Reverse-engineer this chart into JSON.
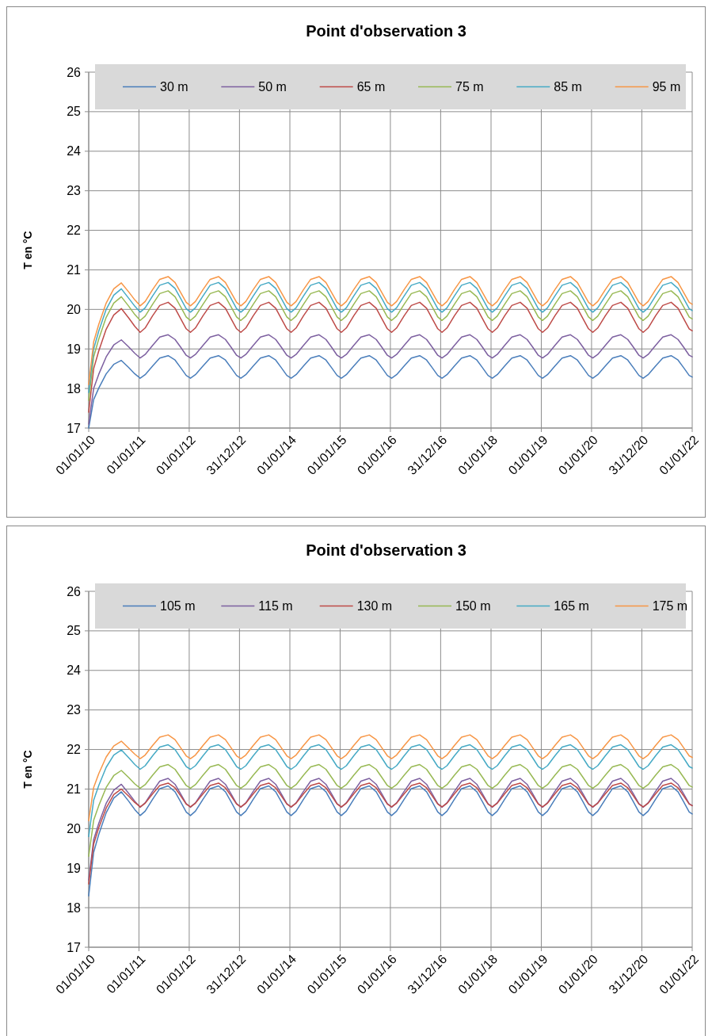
{
  "chart_data": [
    {
      "type": "line",
      "title": "Point d'observation 3",
      "ylabel": "T en °C",
      "legend": "top",
      "grid": true,
      "xlim": [
        "2010-01-01",
        "2022-01-01"
      ],
      "ylim": [
        17,
        26
      ],
      "yticks": [
        17,
        18,
        19,
        20,
        21,
        22,
        23,
        24,
        25,
        26
      ],
      "xticks": [
        {
          "value": "2010-01-01",
          "label": "01/01/10"
        },
        {
          "value": "2011-01-01",
          "label": "01/01/11"
        },
        {
          "value": "2012-01-01",
          "label": "01/01/12"
        },
        {
          "value": "2012-12-31",
          "label": "31/12/12"
        },
        {
          "value": "2014-01-01",
          "label": "01/01/14"
        },
        {
          "value": "2015-01-01",
          "label": "01/01/15"
        },
        {
          "value": "2016-01-01",
          "label": "01/01/16"
        },
        {
          "value": "2016-12-31",
          "label": "31/12/16"
        },
        {
          "value": "2018-01-01",
          "label": "01/01/18"
        },
        {
          "value": "2019-01-01",
          "label": "01/01/19"
        },
        {
          "value": "2020-01-01",
          "label": "01/01/20"
        },
        {
          "value": "2020-12-31",
          "label": "31/12/20"
        },
        {
          "value": "2022-01-01",
          "label": "01/01/22"
        }
      ],
      "x": [
        "2010-01-01",
        "2010-02-06",
        "2010-03-15",
        "2010-05-08",
        "2010-07-02",
        "2010-08-26",
        "2010-10-19",
        "2010-12-02",
        "2011-01-10",
        "2011-02-15",
        "2011-04-10",
        "2011-06-01",
        "2011-08-01",
        "2011-09-20",
        "2011-11-01",
        "2011-12-10",
        "2012-01-10",
        "2012-02-15",
        "2012-04-10",
        "2012-06-01",
        "2012-08-01",
        "2012-09-20",
        "2012-11-01",
        "2012-12-10",
        "2013-01-10",
        "2013-02-15",
        "2013-04-10",
        "2013-06-01",
        "2013-08-01",
        "2013-09-20",
        "2013-11-01",
        "2013-12-10",
        "2014-01-10",
        "2014-02-15",
        "2014-04-10",
        "2014-06-01",
        "2014-08-01",
        "2014-09-20",
        "2014-11-01",
        "2014-12-10",
        "2015-01-10",
        "2015-02-15",
        "2015-04-10",
        "2015-06-01",
        "2015-08-01",
        "2015-09-20",
        "2015-11-01",
        "2015-12-10",
        "2016-01-10",
        "2016-02-15",
        "2016-04-10",
        "2016-06-01",
        "2016-08-01",
        "2016-09-20",
        "2016-11-01",
        "2016-12-10",
        "2017-01-10",
        "2017-02-15",
        "2017-04-10",
        "2017-06-01",
        "2017-08-01",
        "2017-09-20",
        "2017-11-01",
        "2017-12-10",
        "2018-01-10",
        "2018-02-15",
        "2018-04-10",
        "2018-06-01",
        "2018-08-01",
        "2018-09-20",
        "2018-11-01",
        "2018-12-10",
        "2019-01-10",
        "2019-02-15",
        "2019-04-10",
        "2019-06-01",
        "2019-08-01",
        "2019-09-20",
        "2019-11-01",
        "2019-12-10",
        "2020-01-10",
        "2020-02-15",
        "2020-04-10",
        "2020-06-01",
        "2020-08-01",
        "2020-09-20",
        "2020-11-01",
        "2020-12-10",
        "2021-01-10",
        "2021-02-15",
        "2021-04-10",
        "2021-06-01",
        "2021-08-01",
        "2021-09-20",
        "2021-11-01",
        "2021-12-10",
        "2022-01-01"
      ],
      "series": [
        {
          "name": "30 m",
          "color": "#4a7ebb",
          "values": [
            17.0,
            17.72,
            18.01,
            18.37,
            18.61,
            18.71,
            18.53,
            18.37,
            18.26,
            18.35,
            18.57,
            18.77,
            18.83,
            18.72,
            18.52,
            18.33,
            18.26,
            18.35,
            18.57,
            18.77,
            18.83,
            18.72,
            18.52,
            18.33,
            18.26,
            18.35,
            18.57,
            18.77,
            18.83,
            18.72,
            18.52,
            18.33,
            18.26,
            18.35,
            18.57,
            18.77,
            18.83,
            18.72,
            18.52,
            18.33,
            18.26,
            18.35,
            18.57,
            18.77,
            18.83,
            18.72,
            18.52,
            18.33,
            18.26,
            18.35,
            18.57,
            18.77,
            18.83,
            18.72,
            18.52,
            18.33,
            18.26,
            18.35,
            18.57,
            18.77,
            18.83,
            18.72,
            18.52,
            18.33,
            18.26,
            18.35,
            18.57,
            18.77,
            18.83,
            18.72,
            18.52,
            18.33,
            18.26,
            18.35,
            18.57,
            18.77,
            18.83,
            18.72,
            18.52,
            18.33,
            18.26,
            18.35,
            18.57,
            18.77,
            18.83,
            18.72,
            18.52,
            18.33,
            18.26,
            18.35,
            18.57,
            18.77,
            18.83,
            18.72,
            18.52,
            18.33,
            18.29
          ]
        },
        {
          "name": "50 m",
          "color": "#7d60a0",
          "values": [
            17.1,
            18.0,
            18.36,
            18.8,
            19.1,
            19.23,
            19.05,
            18.89,
            18.77,
            18.86,
            19.09,
            19.3,
            19.36,
            19.24,
            19.04,
            18.84,
            18.77,
            18.86,
            19.09,
            19.3,
            19.36,
            19.24,
            19.04,
            18.84,
            18.77,
            18.86,
            19.09,
            19.3,
            19.36,
            19.24,
            19.04,
            18.84,
            18.77,
            18.86,
            19.09,
            19.3,
            19.36,
            19.24,
            19.04,
            18.84,
            18.77,
            18.86,
            19.09,
            19.3,
            19.36,
            19.24,
            19.04,
            18.84,
            18.77,
            18.86,
            19.09,
            19.3,
            19.36,
            19.24,
            19.04,
            18.84,
            18.77,
            18.86,
            19.09,
            19.3,
            19.36,
            19.24,
            19.04,
            18.84,
            18.77,
            18.86,
            19.09,
            19.3,
            19.36,
            19.24,
            19.04,
            18.84,
            18.77,
            18.86,
            19.09,
            19.3,
            19.36,
            19.24,
            19.04,
            18.84,
            18.77,
            18.86,
            19.09,
            19.3,
            19.36,
            19.24,
            19.04,
            18.84,
            18.77,
            18.86,
            19.09,
            19.3,
            19.36,
            19.24,
            19.04,
            18.84,
            18.8
          ]
        },
        {
          "name": "65 m",
          "color": "#be4b48",
          "values": [
            17.4,
            18.5,
            18.95,
            19.5,
            19.86,
            20.02,
            19.78,
            19.57,
            19.42,
            19.53,
            19.84,
            20.1,
            20.18,
            20.03,
            19.76,
            19.51,
            19.42,
            19.53,
            19.84,
            20.1,
            20.18,
            20.03,
            19.76,
            19.51,
            19.42,
            19.53,
            19.84,
            20.1,
            20.18,
            20.03,
            19.76,
            19.51,
            19.42,
            19.53,
            19.84,
            20.1,
            20.18,
            20.03,
            19.76,
            19.51,
            19.42,
            19.53,
            19.84,
            20.1,
            20.18,
            20.03,
            19.76,
            19.51,
            19.42,
            19.53,
            19.84,
            20.1,
            20.18,
            20.03,
            19.76,
            19.51,
            19.42,
            19.53,
            19.84,
            20.1,
            20.18,
            20.03,
            19.76,
            19.51,
            19.42,
            19.53,
            19.84,
            20.1,
            20.18,
            20.03,
            19.76,
            19.51,
            19.42,
            19.53,
            19.84,
            20.1,
            20.18,
            20.03,
            19.76,
            19.51,
            19.42,
            19.53,
            19.84,
            20.1,
            20.18,
            20.03,
            19.76,
            19.51,
            19.42,
            19.53,
            19.84,
            20.1,
            20.18,
            20.03,
            19.76,
            19.51,
            19.46
          ]
        },
        {
          "name": "75 m",
          "color": "#98b954",
          "values": [
            17.7,
            18.8,
            19.25,
            19.8,
            20.16,
            20.32,
            20.08,
            19.87,
            19.72,
            19.83,
            20.13,
            20.4,
            20.47,
            20.32,
            20.06,
            19.81,
            19.72,
            19.83,
            20.13,
            20.4,
            20.47,
            20.32,
            20.06,
            19.81,
            19.72,
            19.83,
            20.13,
            20.4,
            20.47,
            20.32,
            20.06,
            19.81,
            19.72,
            19.83,
            20.13,
            20.4,
            20.47,
            20.32,
            20.06,
            19.81,
            19.72,
            19.83,
            20.13,
            20.4,
            20.47,
            20.32,
            20.06,
            19.81,
            19.72,
            19.83,
            20.13,
            20.4,
            20.47,
            20.32,
            20.06,
            19.81,
            19.72,
            19.83,
            20.13,
            20.4,
            20.47,
            20.32,
            20.06,
            19.81,
            19.72,
            19.83,
            20.13,
            20.4,
            20.47,
            20.32,
            20.06,
            19.81,
            19.72,
            19.83,
            20.13,
            20.4,
            20.47,
            20.32,
            20.06,
            19.81,
            19.72,
            19.83,
            20.13,
            20.4,
            20.47,
            20.32,
            20.06,
            19.81,
            19.72,
            19.83,
            20.13,
            20.4,
            20.47,
            20.32,
            20.06,
            19.81,
            19.76
          ]
        },
        {
          "name": "85 m",
          "color": "#46aac5",
          "values": [
            17.9,
            19.0,
            19.45,
            20.0,
            20.36,
            20.52,
            20.28,
            20.08,
            19.93,
            20.04,
            20.34,
            20.61,
            20.68,
            20.53,
            20.27,
            20.02,
            19.93,
            20.04,
            20.34,
            20.61,
            20.68,
            20.53,
            20.27,
            20.02,
            19.93,
            20.04,
            20.34,
            20.61,
            20.68,
            20.53,
            20.27,
            20.02,
            19.93,
            20.04,
            20.34,
            20.61,
            20.68,
            20.53,
            20.27,
            20.02,
            19.93,
            20.04,
            20.34,
            20.61,
            20.68,
            20.53,
            20.27,
            20.02,
            19.93,
            20.04,
            20.34,
            20.61,
            20.68,
            20.53,
            20.27,
            20.02,
            19.93,
            20.04,
            20.34,
            20.61,
            20.68,
            20.53,
            20.27,
            20.02,
            19.93,
            20.04,
            20.34,
            20.61,
            20.68,
            20.53,
            20.27,
            20.02,
            19.93,
            20.04,
            20.34,
            20.61,
            20.68,
            20.53,
            20.27,
            20.02,
            19.93,
            20.04,
            20.34,
            20.61,
            20.68,
            20.53,
            20.27,
            20.02,
            19.93,
            20.04,
            20.34,
            20.61,
            20.68,
            20.53,
            20.27,
            20.02,
            19.97
          ]
        },
        {
          "name": "95 m",
          "color": "#f79646",
          "values": [
            18.1,
            19.18,
            19.62,
            20.16,
            20.52,
            20.67,
            20.44,
            20.24,
            20.09,
            20.2,
            20.5,
            20.76,
            20.83,
            20.68,
            20.42,
            20.18,
            20.09,
            20.2,
            20.5,
            20.76,
            20.83,
            20.68,
            20.42,
            20.18,
            20.09,
            20.2,
            20.5,
            20.76,
            20.83,
            20.68,
            20.42,
            20.18,
            20.09,
            20.2,
            20.5,
            20.76,
            20.83,
            20.68,
            20.42,
            20.18,
            20.09,
            20.2,
            20.5,
            20.76,
            20.83,
            20.68,
            20.42,
            20.18,
            20.09,
            20.2,
            20.5,
            20.76,
            20.83,
            20.68,
            20.42,
            20.18,
            20.09,
            20.2,
            20.5,
            20.76,
            20.83,
            20.68,
            20.42,
            20.18,
            20.09,
            20.2,
            20.5,
            20.76,
            20.83,
            20.68,
            20.42,
            20.18,
            20.09,
            20.2,
            20.5,
            20.76,
            20.83,
            20.68,
            20.42,
            20.18,
            20.09,
            20.2,
            20.5,
            20.76,
            20.83,
            20.68,
            20.42,
            20.18,
            20.09,
            20.2,
            20.5,
            20.76,
            20.83,
            20.68,
            20.42,
            20.18,
            20.13
          ]
        }
      ]
    },
    {
      "type": "line",
      "title": "Point d'observation 3",
      "ylabel": "T en °C",
      "legend": "top",
      "grid": true,
      "xlim": [
        "2010-01-01",
        "2022-01-01"
      ],
      "ylim": [
        17,
        26
      ],
      "yticks": [
        17,
        18,
        19,
        20,
        21,
        22,
        23,
        24,
        25,
        26
      ],
      "xticks": [
        {
          "value": "2010-01-01",
          "label": "01/01/10"
        },
        {
          "value": "2011-01-01",
          "label": "01/01/11"
        },
        {
          "value": "2012-01-01",
          "label": "01/01/12"
        },
        {
          "value": "2012-12-31",
          "label": "31/12/12"
        },
        {
          "value": "2014-01-01",
          "label": "01/01/14"
        },
        {
          "value": "2015-01-01",
          "label": "01/01/15"
        },
        {
          "value": "2016-01-01",
          "label": "01/01/16"
        },
        {
          "value": "2016-12-31",
          "label": "31/12/16"
        },
        {
          "value": "2018-01-01",
          "label": "01/01/18"
        },
        {
          "value": "2019-01-01",
          "label": "01/01/19"
        },
        {
          "value": "2020-01-01",
          "label": "01/01/20"
        },
        {
          "value": "2020-12-31",
          "label": "31/12/20"
        },
        {
          "value": "2022-01-01",
          "label": "01/01/22"
        }
      ],
      "x": [
        "2010-01-01",
        "2010-02-06",
        "2010-03-15",
        "2010-05-08",
        "2010-07-02",
        "2010-08-26",
        "2010-10-19",
        "2010-12-02",
        "2011-01-10",
        "2011-02-15",
        "2011-04-10",
        "2011-06-01",
        "2011-08-01",
        "2011-09-20",
        "2011-11-01",
        "2011-12-10",
        "2012-01-10",
        "2012-02-15",
        "2012-04-10",
        "2012-06-01",
        "2012-08-01",
        "2012-09-20",
        "2012-11-01",
        "2012-12-10",
        "2013-01-10",
        "2013-02-15",
        "2013-04-10",
        "2013-06-01",
        "2013-08-01",
        "2013-09-20",
        "2013-11-01",
        "2013-12-10",
        "2014-01-10",
        "2014-02-15",
        "2014-04-10",
        "2014-06-01",
        "2014-08-01",
        "2014-09-20",
        "2014-11-01",
        "2014-12-10",
        "2015-01-10",
        "2015-02-15",
        "2015-04-10",
        "2015-06-01",
        "2015-08-01",
        "2015-09-20",
        "2015-11-01",
        "2015-12-10",
        "2016-01-10",
        "2016-02-15",
        "2016-04-10",
        "2016-06-01",
        "2016-08-01",
        "2016-09-20",
        "2016-11-01",
        "2016-12-10",
        "2017-01-10",
        "2017-02-15",
        "2017-04-10",
        "2017-06-01",
        "2017-08-01",
        "2017-09-20",
        "2017-11-01",
        "2017-12-10",
        "2018-01-10",
        "2018-02-15",
        "2018-04-10",
        "2018-06-01",
        "2018-08-01",
        "2018-09-20",
        "2018-11-01",
        "2018-12-10",
        "2019-01-10",
        "2019-02-15",
        "2019-04-10",
        "2019-06-01",
        "2019-08-01",
        "2019-09-20",
        "2019-11-01",
        "2019-12-10",
        "2020-01-10",
        "2020-02-15",
        "2020-04-10",
        "2020-06-01",
        "2020-08-01",
        "2020-09-20",
        "2020-11-01",
        "2020-12-10",
        "2021-01-10",
        "2021-02-15",
        "2021-04-10",
        "2021-06-01",
        "2021-08-01",
        "2021-09-20",
        "2021-11-01",
        "2021-12-10",
        "2022-01-01"
      ],
      "series": [
        {
          "name": "105 m",
          "color": "#4a7ebb",
          "values": [
            18.3,
            19.4,
            19.85,
            20.4,
            20.77,
            20.93,
            20.69,
            20.48,
            20.33,
            20.44,
            20.74,
            21.01,
            21.08,
            20.93,
            20.67,
            20.42,
            20.33,
            20.44,
            20.74,
            21.01,
            21.08,
            20.93,
            20.67,
            20.42,
            20.33,
            20.44,
            20.74,
            21.01,
            21.08,
            20.93,
            20.67,
            20.42,
            20.33,
            20.44,
            20.74,
            21.01,
            21.08,
            20.93,
            20.67,
            20.42,
            20.33,
            20.44,
            20.74,
            21.01,
            21.08,
            20.93,
            20.67,
            20.42,
            20.33,
            20.44,
            20.74,
            21.01,
            21.08,
            20.93,
            20.67,
            20.42,
            20.33,
            20.44,
            20.74,
            21.01,
            21.08,
            20.93,
            20.67,
            20.42,
            20.33,
            20.44,
            20.74,
            21.01,
            21.08,
            20.93,
            20.67,
            20.42,
            20.33,
            20.44,
            20.74,
            21.01,
            21.08,
            20.93,
            20.67,
            20.42,
            20.33,
            20.44,
            20.74,
            21.01,
            21.08,
            20.93,
            20.67,
            20.42,
            20.33,
            20.44,
            20.74,
            21.01,
            21.08,
            20.93,
            20.67,
            20.42,
            20.37
          ]
        },
        {
          "name": "115 m",
          "color": "#7d60a0",
          "values": [
            18.7,
            19.72,
            20.13,
            20.64,
            20.97,
            21.12,
            20.89,
            20.69,
            20.54,
            20.65,
            20.94,
            21.2,
            21.27,
            21.12,
            20.87,
            20.63,
            20.54,
            20.65,
            20.94,
            21.2,
            21.27,
            21.12,
            20.87,
            20.63,
            20.54,
            20.65,
            20.94,
            21.2,
            21.27,
            21.12,
            20.87,
            20.63,
            20.54,
            20.65,
            20.94,
            21.2,
            21.27,
            21.12,
            20.87,
            20.63,
            20.54,
            20.65,
            20.94,
            21.2,
            21.27,
            21.12,
            20.87,
            20.63,
            20.54,
            20.65,
            20.94,
            21.2,
            21.27,
            21.12,
            20.87,
            20.63,
            20.54,
            20.65,
            20.94,
            21.2,
            21.27,
            21.12,
            20.87,
            20.63,
            20.54,
            20.65,
            20.94,
            21.2,
            21.27,
            21.12,
            20.87,
            20.63,
            20.54,
            20.65,
            20.94,
            21.2,
            21.27,
            21.12,
            20.87,
            20.63,
            20.54,
            20.65,
            20.94,
            21.2,
            21.27,
            21.12,
            20.87,
            20.63,
            20.54,
            20.65,
            20.94,
            21.2,
            21.27,
            21.12,
            20.87,
            20.63,
            20.58
          ]
        },
        {
          "name": "130 m",
          "color": "#be4b48",
          "values": [
            18.6,
            19.61,
            20.02,
            20.52,
            20.86,
            21.0,
            20.82,
            20.66,
            20.55,
            20.64,
            20.88,
            21.09,
            21.15,
            21.03,
            20.82,
            20.62,
            20.55,
            20.64,
            20.88,
            21.09,
            21.15,
            21.03,
            20.82,
            20.62,
            20.55,
            20.64,
            20.88,
            21.09,
            21.15,
            21.03,
            20.82,
            20.62,
            20.55,
            20.64,
            20.88,
            21.09,
            21.15,
            21.03,
            20.82,
            20.62,
            20.55,
            20.64,
            20.88,
            21.09,
            21.15,
            21.03,
            20.82,
            20.62,
            20.55,
            20.64,
            20.88,
            21.09,
            21.15,
            21.03,
            20.82,
            20.62,
            20.55,
            20.64,
            20.88,
            21.09,
            21.15,
            21.03,
            20.82,
            20.62,
            20.55,
            20.64,
            20.88,
            21.09,
            21.15,
            21.03,
            20.82,
            20.62,
            20.55,
            20.64,
            20.88,
            21.09,
            21.15,
            21.03,
            20.82,
            20.62,
            20.55,
            20.64,
            20.88,
            21.09,
            21.15,
            21.03,
            20.82,
            20.62,
            20.55,
            20.64,
            20.88,
            21.09,
            21.15,
            21.03,
            20.82,
            20.62,
            20.58
          ]
        },
        {
          "name": "150 m",
          "color": "#98b954",
          "values": [
            19.3,
            20.21,
            20.58,
            21.04,
            21.34,
            21.47,
            21.29,
            21.13,
            21.02,
            21.11,
            21.35,
            21.56,
            21.62,
            21.5,
            21.29,
            21.09,
            21.02,
            21.11,
            21.35,
            21.56,
            21.62,
            21.5,
            21.29,
            21.09,
            21.02,
            21.11,
            21.35,
            21.56,
            21.62,
            21.5,
            21.29,
            21.09,
            21.02,
            21.11,
            21.35,
            21.56,
            21.62,
            21.5,
            21.29,
            21.09,
            21.02,
            21.11,
            21.35,
            21.56,
            21.62,
            21.5,
            21.29,
            21.09,
            21.02,
            21.11,
            21.35,
            21.56,
            21.62,
            21.5,
            21.29,
            21.09,
            21.02,
            21.11,
            21.35,
            21.56,
            21.62,
            21.5,
            21.29,
            21.09,
            21.02,
            21.11,
            21.35,
            21.56,
            21.62,
            21.5,
            21.29,
            21.09,
            21.02,
            21.11,
            21.35,
            21.56,
            21.62,
            21.5,
            21.29,
            21.09,
            21.02,
            21.11,
            21.35,
            21.56,
            21.62,
            21.5,
            21.29,
            21.09,
            21.02,
            21.11,
            21.35,
            21.56,
            21.62,
            21.5,
            21.29,
            21.09,
            21.05
          ]
        },
        {
          "name": "165 m",
          "color": "#46aac5",
          "values": [
            19.8,
            20.72,
            21.09,
            21.55,
            21.86,
            21.99,
            21.79,
            21.62,
            21.5,
            21.59,
            21.84,
            22.06,
            22.12,
            22.0,
            21.78,
            21.57,
            21.5,
            21.59,
            21.84,
            22.06,
            22.12,
            22.0,
            21.78,
            21.57,
            21.5,
            21.59,
            21.84,
            22.06,
            22.12,
            22.0,
            21.78,
            21.57,
            21.5,
            21.59,
            21.84,
            22.06,
            22.12,
            22.0,
            21.78,
            21.57,
            21.5,
            21.59,
            21.84,
            22.06,
            22.12,
            22.0,
            21.78,
            21.57,
            21.5,
            21.59,
            21.84,
            22.06,
            22.12,
            22.0,
            21.78,
            21.57,
            21.5,
            21.59,
            21.84,
            22.06,
            22.12,
            22.0,
            21.78,
            21.57,
            21.5,
            21.59,
            21.84,
            22.06,
            22.12,
            22.0,
            21.78,
            21.57,
            21.5,
            21.59,
            21.84,
            22.06,
            22.12,
            22.0,
            21.78,
            21.57,
            21.5,
            21.59,
            21.84,
            22.06,
            22.12,
            22.0,
            21.78,
            21.57,
            21.5,
            21.59,
            21.84,
            22.06,
            22.12,
            22.0,
            21.78,
            21.57,
            21.53
          ]
        },
        {
          "name": "175 m",
          "color": "#f79646",
          "values": [
            20.2,
            21.04,
            21.39,
            21.81,
            22.09,
            22.21,
            22.03,
            21.88,
            21.77,
            21.86,
            22.1,
            22.31,
            22.37,
            22.25,
            22.04,
            21.84,
            21.77,
            21.86,
            22.1,
            22.31,
            22.37,
            22.25,
            22.04,
            21.84,
            21.77,
            21.86,
            22.1,
            22.31,
            22.37,
            22.25,
            22.04,
            21.84,
            21.77,
            21.86,
            22.1,
            22.31,
            22.37,
            22.25,
            22.04,
            21.84,
            21.77,
            21.86,
            22.1,
            22.31,
            22.37,
            22.25,
            22.04,
            21.84,
            21.77,
            21.86,
            22.1,
            22.31,
            22.37,
            22.25,
            22.04,
            21.84,
            21.77,
            21.86,
            22.1,
            22.31,
            22.37,
            22.25,
            22.04,
            21.84,
            21.77,
            21.86,
            22.1,
            22.31,
            22.37,
            22.25,
            22.04,
            21.84,
            21.77,
            21.86,
            22.1,
            22.31,
            22.37,
            22.25,
            22.04,
            21.84,
            21.77,
            21.86,
            22.1,
            22.31,
            22.37,
            22.25,
            22.04,
            21.84,
            21.77,
            21.86,
            22.1,
            22.31,
            22.37,
            22.25,
            22.04,
            21.84,
            21.8
          ]
        }
      ]
    }
  ]
}
